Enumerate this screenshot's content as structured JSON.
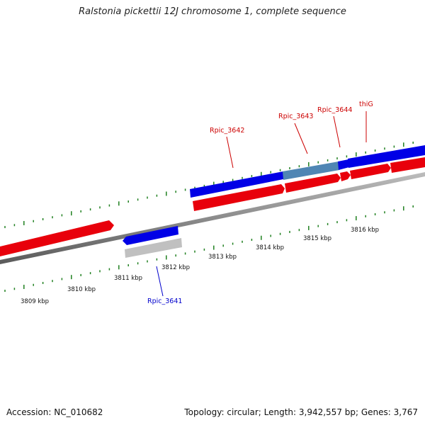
{
  "title": "Ralstonia pickettii 12J chromosome 1, complete sequence",
  "footer": {
    "accession": "Accession: NC_010682",
    "summary": "Topology: circular; Length: 3,942,557 bp; Genes: 3,767"
  },
  "colors": {
    "forward_gene": "#e8000b",
    "reverse_gene": "#0000e6",
    "highlight_gene": "#4f86b4",
    "pseudo_gene": "#c0c0c0",
    "backbone": "#808080",
    "ticks": "#208020",
    "label_forward": "#cc0000",
    "label_reverse": "#0000cc"
  },
  "scale_labels": [
    "3809 kbp",
    "3810 kbp",
    "3811 kbp",
    "3812 kbp",
    "3813 kbp",
    "3814 kbp",
    "3815 kbp",
    "3816 kbp"
  ],
  "gene_labels": [
    {
      "name": "Rpic_3641",
      "strand": "reverse"
    },
    {
      "name": "Rpic_3642",
      "strand": "forward"
    },
    {
      "name": "Rpic_3643",
      "strand": "forward"
    },
    {
      "name": "Rpic_3644",
      "strand": "forward"
    },
    {
      "name": "thiG",
      "strand": "forward"
    }
  ]
}
